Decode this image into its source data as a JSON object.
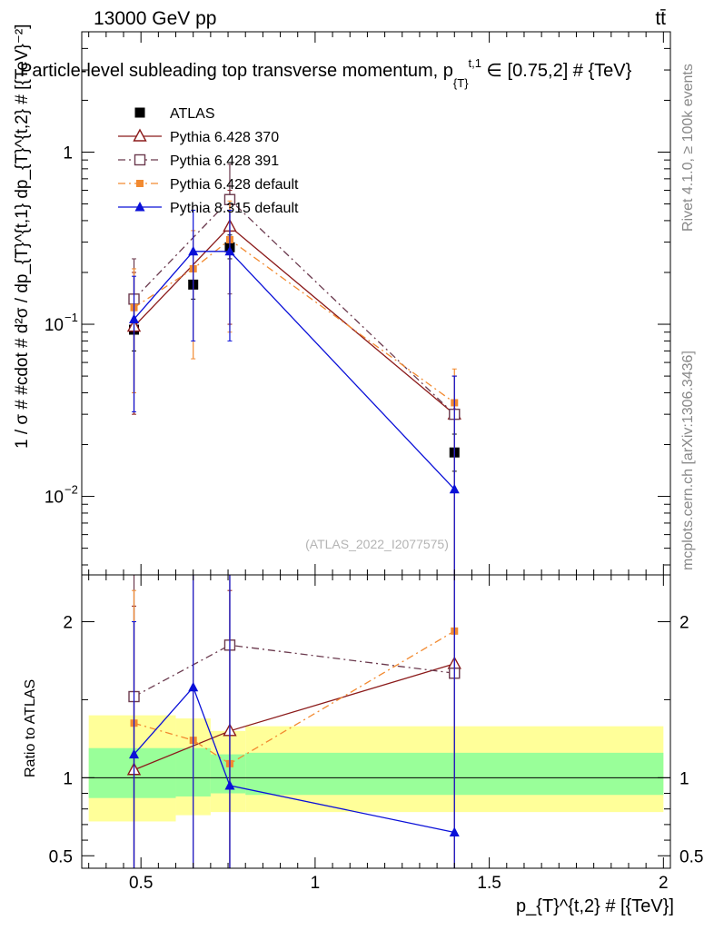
{
  "header": {
    "energy_label": "13000 GeV pp",
    "process_label": "tt̄"
  },
  "side_labels": {
    "rivet": "Rivet 4.1.0, ≥ 100k events",
    "mcplots": "mcplots.cern.ch [arXiv:1306.3436]"
  },
  "watermark": "(ATLAS_2022_I2077575)",
  "chart_data": [
    {
      "panel": "main",
      "type": "scatter",
      "title": "Particle-level subleading top transverse momentum, p_{T}^{t,1} ∈ [0.75,2] # {TeV}",
      "title_parts": {
        "pre": "Particle-level subleading top transverse momentum, p",
        "sub": "{T}",
        "sup": "t,1",
        "post": " ∈ [0.75,2] # {TeV}"
      },
      "ylabel": "1 / σ # #cdot # d²σ / dp_{T}^{t,1} dp_{T}^{t,2} # [{TeV}⁻²]",
      "xlabel": "p_{T}^{t,2} # [{TeV}]",
      "yscale": "log",
      "xlim": [
        0.33,
        2.02
      ],
      "ylim": [
        0.0035,
        5.0
      ],
      "x_ticks": [
        0.5,
        1,
        1.5,
        2
      ],
      "y_ticks": [
        {
          "value": 0.01,
          "label": "10",
          "exp": "−2"
        },
        {
          "value": 0.1,
          "label": "10",
          "exp": "−1"
        },
        {
          "value": 1,
          "label": "1",
          "exp": ""
        }
      ],
      "legend_position": "top-left",
      "series": [
        {
          "name": "ATLAS",
          "color": "#000000",
          "marker": "filled-square",
          "line": "none",
          "points": [
            {
              "x": 0.48,
              "y": 0.093,
              "ylo": 0.07,
              "yhi": 0.12
            },
            {
              "x": 0.65,
              "y": 0.17,
              "ylo": 0.14,
              "yhi": 0.21
            },
            {
              "x": 0.755,
              "y": 0.28,
              "ylo": 0.24,
              "yhi": 0.33
            },
            {
              "x": 1.4,
              "y": 0.018,
              "ylo": 0.014,
              "yhi": 0.023
            }
          ]
        },
        {
          "name": "Pythia 6.428 370",
          "color": "#8b1a1a",
          "marker": "open-triangle",
          "line": "solid",
          "points": [
            {
              "x": 0.48,
              "y": 0.097,
              "ylo": 0.03,
              "yhi": 0.2
            },
            {
              "x": 0.755,
              "y": 0.37,
              "ylo": 0.1,
              "yhi": 0.6
            },
            {
              "x": 1.4,
              "y": 0.03,
              "ylo": 0.0035,
              "yhi": 0.05
            }
          ]
        },
        {
          "name": "Pythia 6.428 391",
          "color": "#6b3a4e",
          "marker": "open-square",
          "line": "dashdot",
          "points": [
            {
              "x": 0.48,
              "y": 0.14,
              "ylo": 0.04,
              "yhi": 0.24
            },
            {
              "x": 0.755,
              "y": 0.53,
              "ylo": 0.15,
              "yhi": 0.85
            },
            {
              "x": 1.4,
              "y": 0.03,
              "ylo": 0.0035,
              "yhi": 0.05
            }
          ]
        },
        {
          "name": "Pythia 6.428 default",
          "color": "#f28a30",
          "marker": "filled-square-small",
          "line": "dashdot",
          "points": [
            {
              "x": 0.48,
              "y": 0.125,
              "ylo": 0.04,
              "yhi": 0.21
            },
            {
              "x": 0.65,
              "y": 0.21,
              "ylo": 0.063,
              "yhi": 0.35
            },
            {
              "x": 0.755,
              "y": 0.31,
              "ylo": 0.09,
              "yhi": 0.52
            },
            {
              "x": 1.4,
              "y": 0.035,
              "ylo": 0.0035,
              "yhi": 0.055
            }
          ]
        },
        {
          "name": "Pythia 8.315 default",
          "color": "#0a10d8",
          "marker": "filled-triangle",
          "line": "solid",
          "points": [
            {
              "x": 0.48,
              "y": 0.107,
              "ylo": 0.031,
              "yhi": 0.19
            },
            {
              "x": 0.65,
              "y": 0.265,
              "ylo": 0.08,
              "yhi": 0.46
            },
            {
              "x": 0.755,
              "y": 0.265,
              "ylo": 0.08,
              "yhi": 0.46
            },
            {
              "x": 1.4,
              "y": 0.011,
              "ylo": 0.0035,
              "yhi": 0.05
            }
          ]
        }
      ]
    },
    {
      "panel": "ratio",
      "type": "line",
      "ylabel": "Ratio to ATLAS",
      "xlim": [
        0.33,
        2.02
      ],
      "ylim": [
        0.42,
        2.3
      ],
      "y_ticks": [
        0.5,
        1,
        2
      ],
      "reference_line": 1,
      "bands": {
        "green": {
          "color": "#99ff99",
          "bins": [
            {
              "x0": 0.35,
              "x1": 0.6,
              "lo": 0.87,
              "hi": 1.19
            },
            {
              "x0": 0.6,
              "x1": 0.7,
              "lo": 0.88,
              "hi": 1.19
            },
            {
              "x0": 0.7,
              "x1": 0.8,
              "lo": 0.9,
              "hi": 1.15
            },
            {
              "x0": 0.8,
              "x1": 2.0,
              "lo": 0.89,
              "hi": 1.16
            }
          ]
        },
        "yellow": {
          "color": "#ffff99",
          "bins": [
            {
              "x0": 0.35,
              "x1": 0.6,
              "lo": 0.72,
              "hi": 1.4
            },
            {
              "x0": 0.6,
              "x1": 0.7,
              "lo": 0.76,
              "hi": 1.38
            },
            {
              "x0": 0.7,
              "x1": 0.8,
              "lo": 0.78,
              "hi": 1.3
            },
            {
              "x0": 0.8,
              "x1": 2.0,
              "lo": 0.78,
              "hi": 1.33
            }
          ]
        }
      },
      "series": [
        {
          "name": "Pythia 6.428 370",
          "points": [
            {
              "x": 0.48,
              "y": 1.05,
              "ylo": 0.3,
              "yhi": 2.1
            },
            {
              "x": 0.755,
              "y": 1.3,
              "ylo": 0.38,
              "yhi": 2.2
            },
            {
              "x": 1.4,
              "y": 1.73,
              "ylo": 0.42,
              "yhi": 2.3
            }
          ]
        },
        {
          "name": "Pythia 6.428 391",
          "points": [
            {
              "x": 0.48,
              "y": 1.52,
              "ylo": 0.42,
              "yhi": 2.3
            },
            {
              "x": 0.755,
              "y": 1.85,
              "ylo": 0.42,
              "yhi": 2.3
            },
            {
              "x": 1.4,
              "y": 1.67,
              "ylo": 0.42,
              "yhi": 2.3
            }
          ]
        },
        {
          "name": "Pythia 6.428 default",
          "points": [
            {
              "x": 0.48,
              "y": 1.35,
              "ylo": 0.42,
              "yhi": 2.2
            },
            {
              "x": 0.65,
              "y": 1.24,
              "ylo": 0.42,
              "yhi": 2.3
            },
            {
              "x": 0.755,
              "y": 1.09,
              "ylo": 0.42,
              "yhi": 2.3
            },
            {
              "x": 1.4,
              "y": 1.94,
              "ylo": 0.42,
              "yhi": 2.3
            }
          ]
        },
        {
          "name": "Pythia 8.315 default",
          "points": [
            {
              "x": 0.48,
              "y": 1.15,
              "ylo": 0.42,
              "yhi": 2.0
            },
            {
              "x": 0.65,
              "y": 1.58,
              "ylo": 0.42,
              "yhi": 2.3
            },
            {
              "x": 0.755,
              "y": 0.95,
              "ylo": 0.42,
              "yhi": 2.3
            },
            {
              "x": 1.4,
              "y": 0.65,
              "ylo": 0.42,
              "yhi": 2.3
            }
          ]
        }
      ]
    }
  ]
}
